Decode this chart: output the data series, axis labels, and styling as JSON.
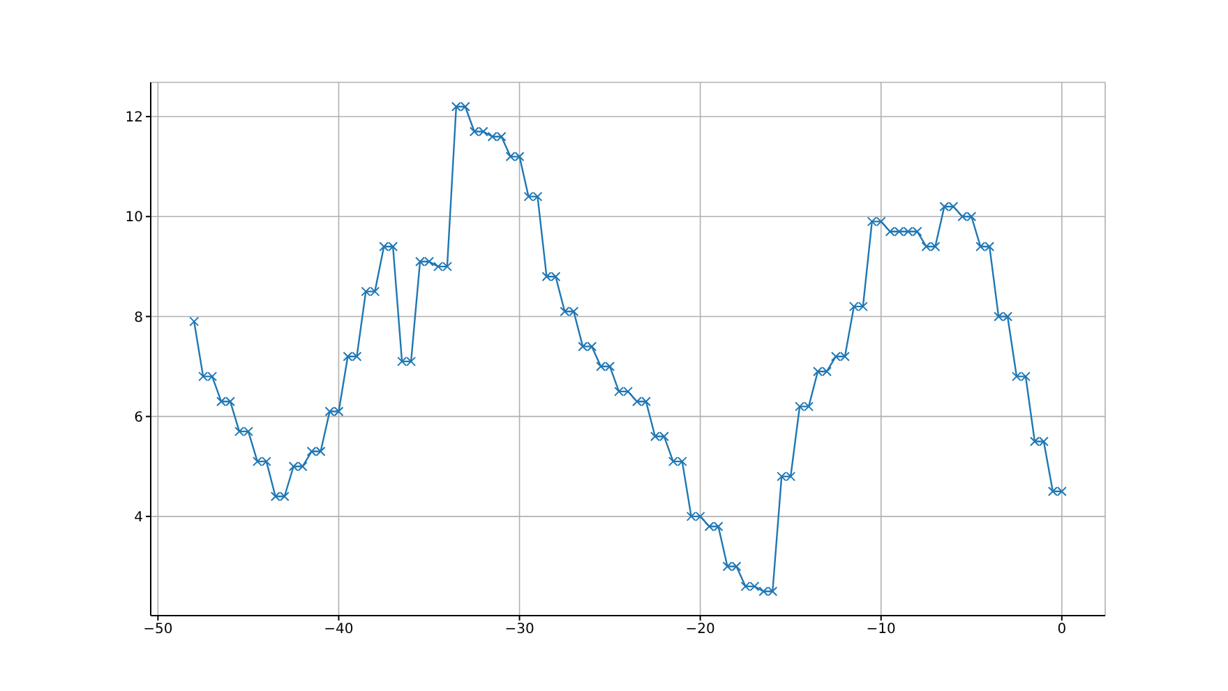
{
  "chart_data": {
    "type": "line",
    "x": [
      -48,
      -47.5,
      -47,
      -46.5,
      -46,
      -45.5,
      -45,
      -44.5,
      -44,
      -43.5,
      -43,
      -42.5,
      -42,
      -41.5,
      -41,
      -40.5,
      -40,
      -39.5,
      -39,
      -38.5,
      -38,
      -37.5,
      -37,
      -36.5,
      -36,
      -35.5,
      -35,
      -34.5,
      -34,
      -33.5,
      -33,
      -32.5,
      -32,
      -31.5,
      -31,
      -30.5,
      -30,
      -29.5,
      -29,
      -28.5,
      -28,
      -27.5,
      -27,
      -26.5,
      -26,
      -25.5,
      -25,
      -24.5,
      -24,
      -23.5,
      -23,
      -22.5,
      -22,
      -21.5,
      -21,
      -20.5,
      -20,
      -19.5,
      -19,
      -18.5,
      -18,
      -17.5,
      -17,
      -16.5,
      -16,
      -15.5,
      -15,
      -14.5,
      -14,
      -13.5,
      -13,
      -12.5,
      -12,
      -11.5,
      -11,
      -10.5,
      -10,
      -9.5,
      -9,
      -8.5,
      -8,
      -7.5,
      -7,
      -6.5,
      -6,
      -5.5,
      -5,
      -4.5,
      -4,
      -3.5,
      -3,
      -2.5,
      -2,
      -1.5,
      -1,
      -0.5,
      0
    ],
    "series": [
      {
        "color": "#1f77b4",
        "values": [
          7.9,
          6.8,
          6.8,
          6.3,
          6.3,
          5.7,
          5.7,
          5.1,
          5.1,
          4.4,
          4.4,
          5.0,
          5.0,
          5.3,
          5.3,
          6.1,
          6.1,
          7.2,
          7.2,
          8.5,
          8.5,
          9.4,
          9.4,
          7.1,
          7.1,
          9.1,
          9.1,
          9.0,
          9.0,
          12.2,
          12.2,
          11.7,
          11.7,
          11.6,
          11.6,
          11.2,
          11.2,
          10.4,
          10.4,
          8.8,
          8.8,
          8.1,
          8.1,
          7.4,
          7.4,
          7.0,
          7.0,
          6.5,
          6.5,
          6.3,
          6.3,
          5.6,
          5.6,
          5.1,
          5.1,
          4.0,
          4.0,
          3.8,
          3.8,
          3.0,
          3.0,
          2.6,
          2.6,
          2.5,
          2.5,
          4.8,
          4.8,
          6.2,
          6.2,
          6.9,
          6.9,
          7.2,
          7.2,
          8.2,
          8.2,
          9.9,
          9.9,
          9.7,
          9.7,
          9.7,
          9.7,
          9.4,
          9.4,
          10.2,
          10.2,
          10.0,
          10.0,
          9.4,
          9.4,
          8.0,
          8.0,
          6.8,
          6.8,
          5.5,
          5.5,
          4.5,
          4.5
        ]
      }
    ],
    "xlim": [
      -50.4,
      2.4
    ],
    "xticks": [
      -50,
      -40,
      -30,
      -20,
      -10,
      0
    ],
    "ylim": [
      2.015,
      12.685
    ],
    "yticks": [
      4,
      6,
      8,
      10,
      12
    ],
    "grid": true,
    "marker": "cross",
    "line_style": "solid",
    "legend": false
  }
}
